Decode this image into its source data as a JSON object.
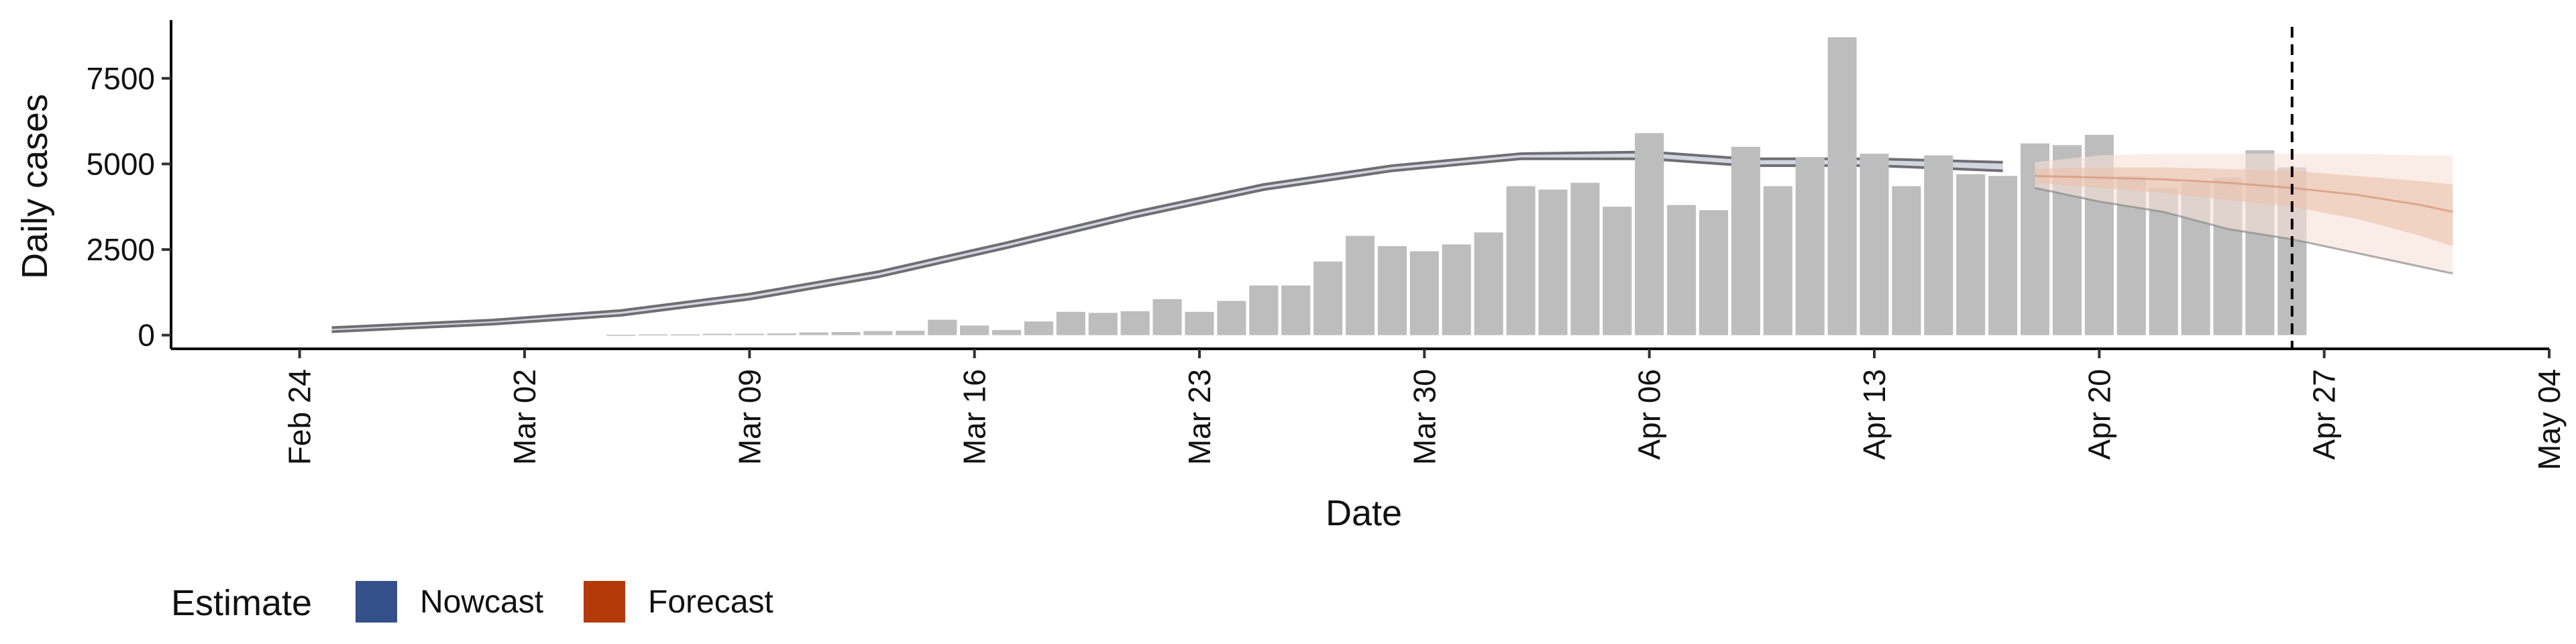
{
  "chart_data": {
    "type": "bar",
    "xlabel": "Date",
    "ylabel": "Daily cases",
    "x_range": [
      "2020-02-20",
      "2020-05-04"
    ],
    "ylim": [
      -400,
      9200
    ],
    "y_ticks": [
      0,
      2500,
      5000,
      7500
    ],
    "x_ticks": [
      {
        "date": "2020-02-24",
        "label": "Feb 24"
      },
      {
        "date": "2020-03-02",
        "label": "Mar 02"
      },
      {
        "date": "2020-03-09",
        "label": "Mar 09"
      },
      {
        "date": "2020-03-16",
        "label": "Mar 16"
      },
      {
        "date": "2020-03-23",
        "label": "Mar 23"
      },
      {
        "date": "2020-03-30",
        "label": "Mar 30"
      },
      {
        "date": "2020-04-06",
        "label": "Apr 06"
      },
      {
        "date": "2020-04-13",
        "label": "Apr 13"
      },
      {
        "date": "2020-04-20",
        "label": "Apr 20"
      },
      {
        "date": "2020-04-27",
        "label": "Apr 27"
      },
      {
        "date": "2020-05-04",
        "label": "May 04"
      }
    ],
    "grid": false,
    "legend": {
      "position": "bottom-left",
      "title": "Estimate",
      "items": [
        {
          "label": "Nowcast",
          "color": "#33508a"
        },
        {
          "label": "Forecast",
          "color": "#b43a0a"
        }
      ]
    },
    "vline_date": "2020-04-26",
    "bars": {
      "start_date": "2020-03-05",
      "values": [
        10,
        20,
        20,
        40,
        40,
        50,
        80,
        90,
        120,
        130,
        450,
        280,
        150,
        400,
        680,
        650,
        700,
        1050,
        680,
        1000,
        1450,
        1450,
        2150,
        2900,
        2600,
        2450,
        2650,
        3000,
        4350,
        4250,
        4450,
        3750,
        5900,
        3800,
        3650,
        5500,
        4350,
        5200,
        8700,
        5300,
        4350,
        5250,
        4700,
        4650,
        5600,
        5550,
        5850,
        4650,
        4300,
        4450,
        4600,
        5400,
        4900
      ],
      "color": "#bdbdbd"
    },
    "series": [
      {
        "name": "Nowcast",
        "band_color": "#c9cfdc",
        "edge_color": "#6f6f73",
        "points": [
          {
            "date": "2020-02-25",
            "lower": 100,
            "upper": 220
          },
          {
            "date": "2020-03-01",
            "lower": 320,
            "upper": 440
          },
          {
            "date": "2020-03-05",
            "lower": 580,
            "upper": 720
          },
          {
            "date": "2020-03-09",
            "lower": 1050,
            "upper": 1200
          },
          {
            "date": "2020-03-13",
            "lower": 1700,
            "upper": 1850
          },
          {
            "date": "2020-03-17",
            "lower": 2550,
            "upper": 2700
          },
          {
            "date": "2020-03-21",
            "lower": 3450,
            "upper": 3600
          },
          {
            "date": "2020-03-25",
            "lower": 4250,
            "upper": 4400
          },
          {
            "date": "2020-03-29",
            "lower": 4800,
            "upper": 4950
          },
          {
            "date": "2020-04-02",
            "lower": 5150,
            "upper": 5300
          },
          {
            "date": "2020-04-06",
            "lower": 5150,
            "upper": 5350
          },
          {
            "date": "2020-04-09",
            "lower": 4950,
            "upper": 5150
          },
          {
            "date": "2020-04-13",
            "lower": 4950,
            "upper": 5150
          },
          {
            "date": "2020-04-17",
            "lower": 4800,
            "upper": 5050
          }
        ]
      },
      {
        "name": "Forecast",
        "colors": {
          "outer": "#f6e1d7",
          "inner": "#ebc2ac",
          "median": "#d99b7f",
          "edge": "#8c8c8c"
        },
        "points": [
          {
            "date": "2020-04-18",
            "outer_lower": 4300,
            "outer_upper": 5050,
            "inner_lower": 4450,
            "inner_upper": 4850,
            "median": 4650
          },
          {
            "date": "2020-04-20",
            "outer_lower": 3900,
            "outer_upper": 5250,
            "inner_lower": 4300,
            "inner_upper": 4900,
            "median": 4600
          },
          {
            "date": "2020-04-22",
            "outer_lower": 3600,
            "outer_upper": 5300,
            "inner_lower": 4150,
            "inner_upper": 4900,
            "median": 4550
          },
          {
            "date": "2020-04-24",
            "outer_lower": 3100,
            "outer_upper": 5300,
            "inner_lower": 3950,
            "inner_upper": 4850,
            "median": 4450
          },
          {
            "date": "2020-04-26",
            "outer_lower": 2800,
            "outer_upper": 5300,
            "inner_lower": 3750,
            "inner_upper": 4800,
            "median": 4300
          },
          {
            "date": "2020-04-28",
            "outer_lower": 2400,
            "outer_upper": 5300,
            "inner_lower": 3400,
            "inner_upper": 4650,
            "median": 4100
          },
          {
            "date": "2020-04-30",
            "outer_lower": 2000,
            "outer_upper": 5250,
            "inner_lower": 2900,
            "inner_upper": 4500,
            "median": 3800
          },
          {
            "date": "2020-05-01",
            "outer_lower": 1800,
            "outer_upper": 5250,
            "inner_lower": 2600,
            "inner_upper": 4400,
            "median": 3600
          }
        ]
      }
    ]
  }
}
